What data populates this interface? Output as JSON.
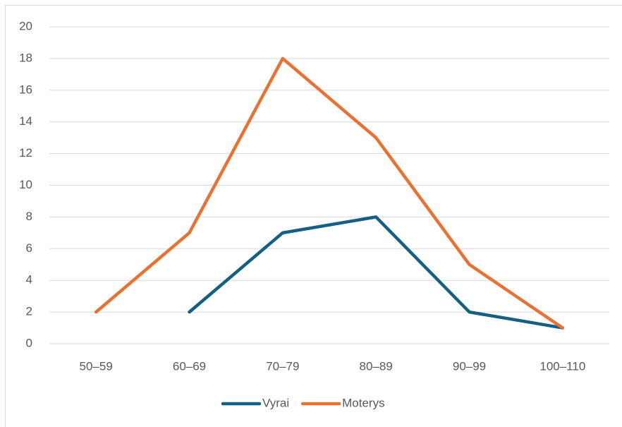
{
  "chart_data": {
    "type": "line",
    "categories": [
      "50–59",
      "60–69",
      "70–79",
      "80–89",
      "90–99",
      "100–110"
    ],
    "series": [
      {
        "name": "Vyrai",
        "color": "#156082",
        "values": [
          null,
          2,
          7,
          8,
          2,
          1
        ]
      },
      {
        "name": "Moterys",
        "color": "#e97132",
        "values": [
          2,
          7,
          18,
          13,
          5,
          1
        ]
      }
    ],
    "ylim": [
      0,
      20
    ],
    "yticks": [
      0,
      2,
      4,
      6,
      8,
      10,
      12,
      14,
      16,
      18,
      20
    ],
    "grid": true,
    "legend": "bottom"
  }
}
